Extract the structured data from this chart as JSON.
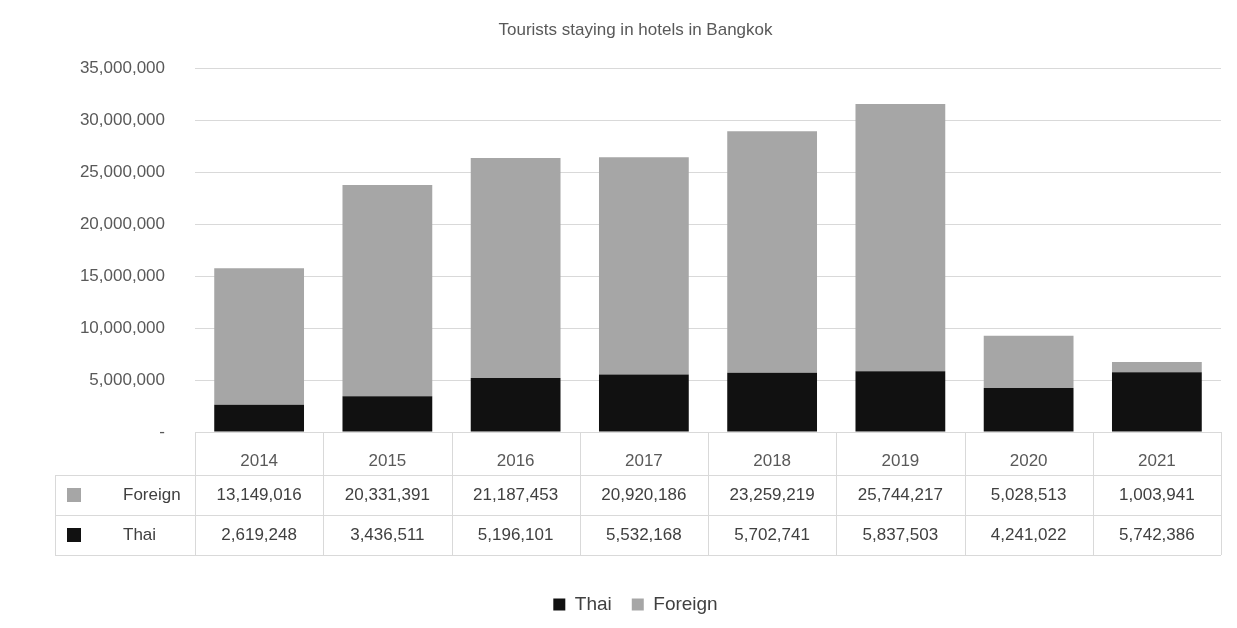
{
  "chart_data": {
    "type": "bar",
    "title": "Tourists staying in hotels in Bangkok",
    "stacked": true,
    "categories": [
      "2014",
      "2015",
      "2016",
      "2017",
      "2018",
      "2019",
      "2020",
      "2021"
    ],
    "series": [
      {
        "name": "Thai",
        "color": "#111111",
        "values": [
          2619248,
          3436511,
          5196101,
          5532168,
          5702741,
          5837503,
          4241022,
          5742386
        ],
        "value_labels": [
          "2,619,248",
          "3,436,511",
          "5,196,101",
          "5,532,168",
          "5,702,741",
          "5,837,503",
          "4,241,022",
          "5,742,386"
        ]
      },
      {
        "name": "Foreign",
        "color": "#a6a6a6",
        "values": [
          13149016,
          20331391,
          21187453,
          20920186,
          23259219,
          25744217,
          5028513,
          1003941
        ],
        "value_labels": [
          "13,149,016",
          "20,331,391",
          "21,187,453",
          "20,920,186",
          "23,259,219",
          "25,744,217",
          "5,028,513",
          "1,003,941"
        ]
      }
    ],
    "ylim": [
      0,
      35000000
    ],
    "yticks": [
      {
        "value": 0,
        "label": "-"
      },
      {
        "value": 5000000,
        "label": "5,000,000"
      },
      {
        "value": 10000000,
        "label": "10,000,000"
      },
      {
        "value": 15000000,
        "label": "15,000,000"
      },
      {
        "value": 20000000,
        "label": "20,000,000"
      },
      {
        "value": 25000000,
        "label": "25,000,000"
      },
      {
        "value": 30000000,
        "label": "30,000,000"
      },
      {
        "value": 35000000,
        "label": "35,000,000"
      }
    ],
    "grid": "y",
    "legend": "bottom"
  }
}
